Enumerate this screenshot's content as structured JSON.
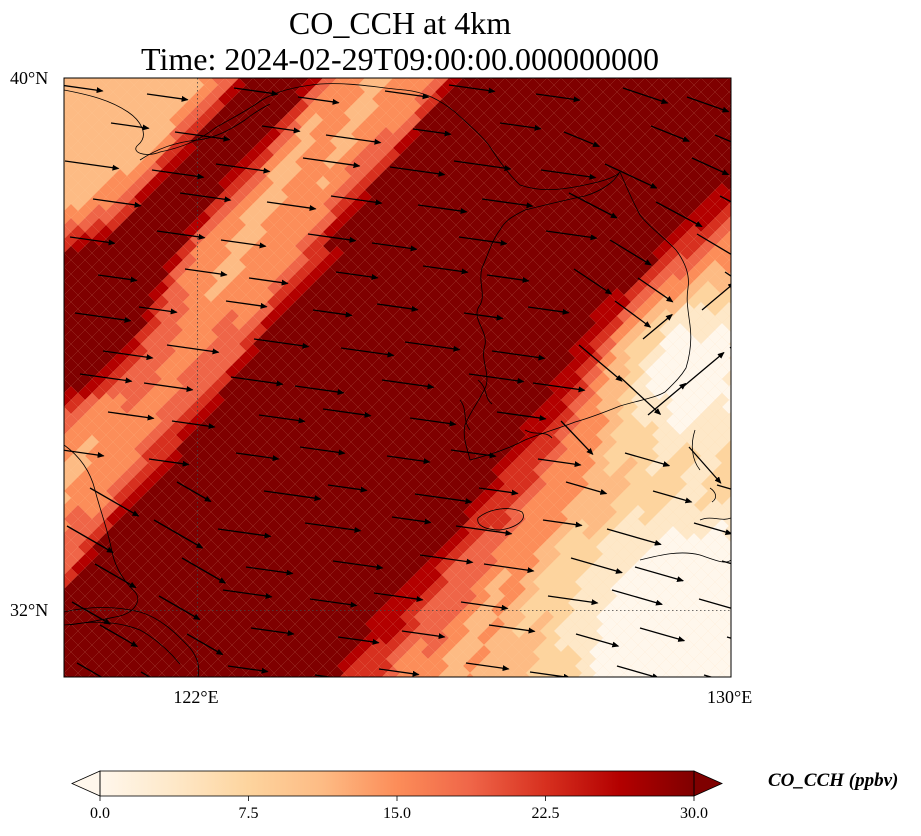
{
  "title": {
    "line1": "CO_CCH at 4km",
    "line2": "Time: 2024-02-29T09:00:00.000000000"
  },
  "map": {
    "lon_range": [
      120,
      130
    ],
    "lat_range": [
      31,
      40
    ],
    "lat_ticks": [
      {
        "lat": 40,
        "label": "40°N"
      },
      {
        "lat": 32,
        "label": "32°N"
      }
    ],
    "lon_ticks": [
      {
        "lon": 122,
        "label": "122°E"
      },
      {
        "lon": 130,
        "label": "130°E"
      }
    ],
    "gridlines": "dotted",
    "variable": "CO_CCH",
    "units": "ppbv",
    "colormap": "OrRd",
    "vmin": 0,
    "vmax": 30,
    "wind_vectors": "prevailing westerly, shown as black arrows"
  },
  "colorbar": {
    "label": "CO_CCH (ppbv)",
    "ticks": [
      "0.0",
      "7.5",
      "15.0",
      "22.5",
      "30.0"
    ],
    "tick_values": [
      0,
      7.5,
      15,
      22.5,
      30
    ],
    "extend": "both",
    "colors": [
      "#fff7ec",
      "#fee8c8",
      "#fdd49e",
      "#fdbb84",
      "#fc8d59",
      "#ef6548",
      "#d7301f",
      "#b30000",
      "#7f0000"
    ]
  }
}
